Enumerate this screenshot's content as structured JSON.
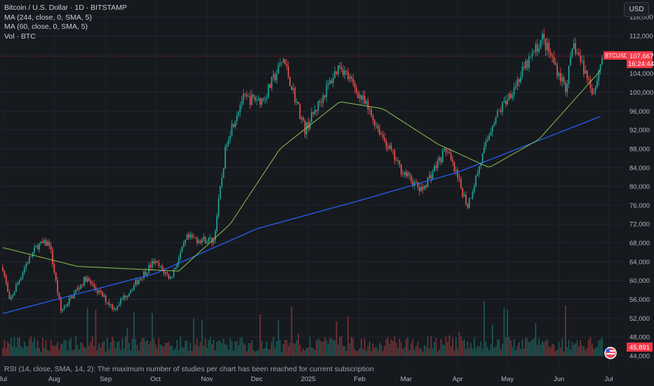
{
  "header": {
    "title": "Bitcoin / U.S. Dollar · 1D · BITSTAMP",
    "ma1": "MA (244, close, 0, SMA, 5)",
    "ma2": "MA (60, close, 0, SMA, 5)",
    "vol": "Vol · BTC",
    "currency_button": "USD"
  },
  "footer": {
    "rsi_note": "RSI (14, close, SMA, 14, 2): The maximum number of studies per chart has been reached for current subscription"
  },
  "colors": {
    "background": "#161a1f",
    "up": "#26a69a",
    "down": "#ef5350",
    "ma244": "#2962ff",
    "ma60": "#8bc34a",
    "price_label": "#f23645"
  },
  "chart_data": {
    "type": "candlestick",
    "x_tick_labels": [
      "Jul",
      "Aug",
      "Sep",
      "Oct",
      "Nov",
      "Dec",
      "2025",
      "Feb",
      "Mar",
      "Apr",
      "May",
      "Jun",
      "Jul"
    ],
    "y_tick_labels": [
      "116,000",
      "112,000",
      "108,000",
      "104,000",
      "100,000",
      "96,000",
      "92,000",
      "88,000",
      "84,000",
      "80,000",
      "76,000",
      "72,000",
      "68,000",
      "64,000",
      "60,000",
      "56,000",
      "52,000",
      "48,000",
      "44,000"
    ],
    "ylim": [
      44000,
      116000
    ],
    "last_price_label": "107,667",
    "symbol_label": "BTCUSD",
    "countdown_label": "16:24:44",
    "volume_label": "45,891",
    "price_path": [
      [
        "2024-07-01",
        62800
      ],
      [
        "2024-07-05",
        55500
      ],
      [
        "2024-07-15",
        63500
      ],
      [
        "2024-07-22",
        67500
      ],
      [
        "2024-07-29",
        68000
      ],
      [
        "2024-08-05",
        53500
      ],
      [
        "2024-08-20",
        60500
      ],
      [
        "2024-09-06",
        54000
      ],
      [
        "2024-09-30",
        64000
      ],
      [
        "2024-10-10",
        60500
      ],
      [
        "2024-10-20",
        69000
      ],
      [
        "2024-11-05",
        68500
      ],
      [
        "2024-11-13",
        90000
      ],
      [
        "2024-11-22",
        98500
      ],
      [
        "2024-12-05",
        98500
      ],
      [
        "2024-12-17",
        107000
      ],
      [
        "2024-12-30",
        92000
      ],
      [
        "2025-01-20",
        106000
      ],
      [
        "2025-02-05",
        97000
      ],
      [
        "2025-02-25",
        84000
      ],
      [
        "2025-03-10",
        79000
      ],
      [
        "2025-03-25",
        88000
      ],
      [
        "2025-04-07",
        76000
      ],
      [
        "2025-04-22",
        93500
      ],
      [
        "2025-05-08",
        103000
      ],
      [
        "2025-05-22",
        111500
      ],
      [
        "2025-06-05",
        101000
      ],
      [
        "2025-06-10",
        110000
      ],
      [
        "2025-06-22",
        100000
      ],
      [
        "2025-06-27",
        107667
      ]
    ],
    "series": [
      {
        "name": "MA (244, close, 0, SMA, 5)",
        "values": [
          [
            "2024-07-01",
            53000
          ],
          [
            "2024-10-01",
            61500
          ],
          [
            "2024-12-01",
            71000
          ],
          [
            "2025-02-01",
            77000
          ],
          [
            "2025-04-01",
            83000
          ],
          [
            "2025-06-27",
            95000
          ]
        ]
      },
      {
        "name": "MA (60, close, 0, SMA, 5)",
        "values": [
          [
            "2024-07-01",
            67000
          ],
          [
            "2024-08-15",
            63000
          ],
          [
            "2024-10-15",
            62000
          ],
          [
            "2024-11-15",
            72000
          ],
          [
            "2024-12-15",
            88000
          ],
          [
            "2025-01-20",
            98000
          ],
          [
            "2025-02-15",
            96500
          ],
          [
            "2025-03-20",
            89000
          ],
          [
            "2025-04-20",
            84000
          ],
          [
            "2025-05-20",
            90000
          ],
          [
            "2025-06-27",
            105000
          ]
        ]
      }
    ]
  }
}
